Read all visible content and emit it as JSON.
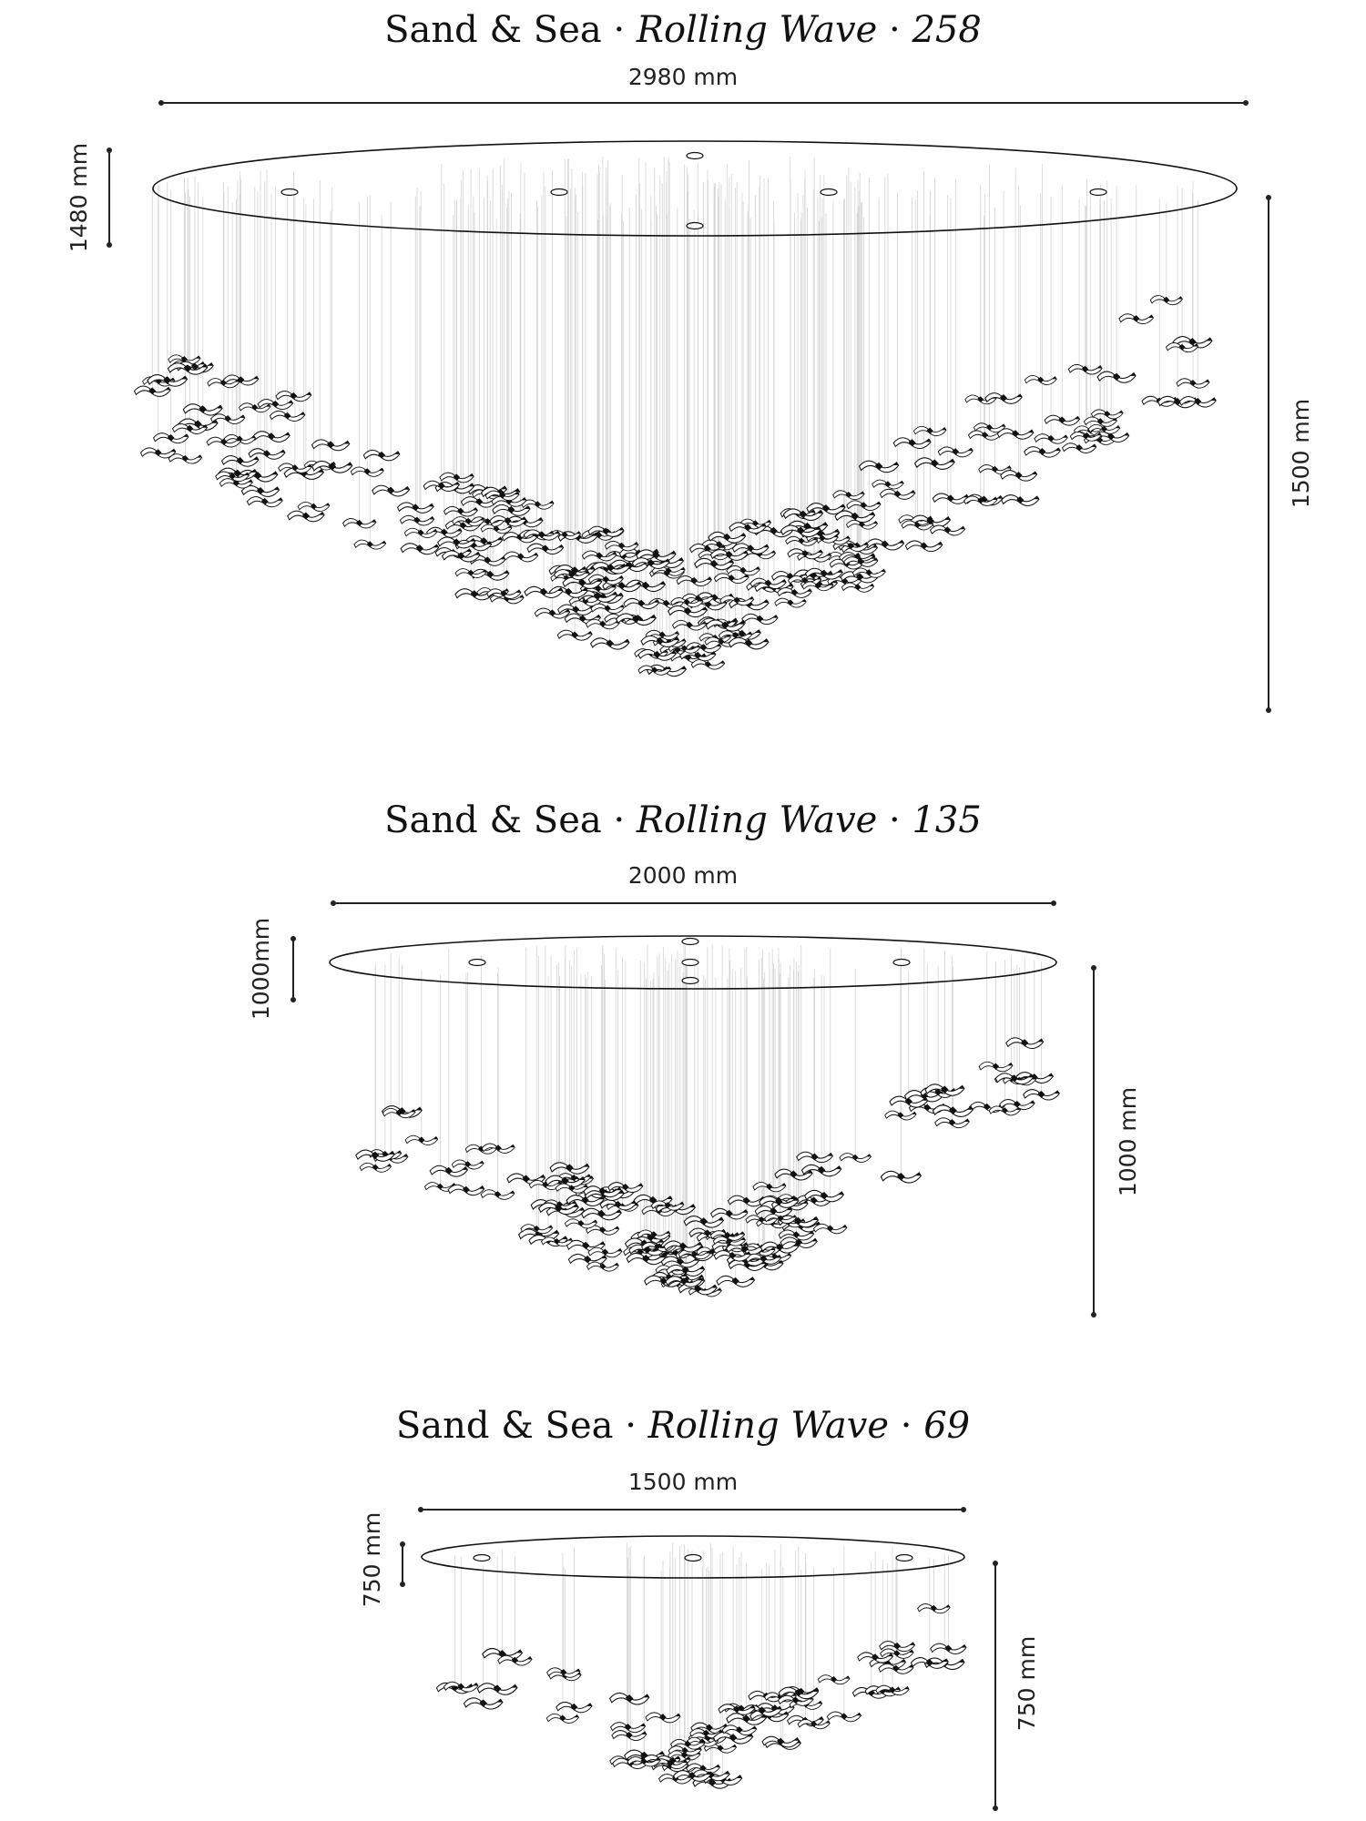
{
  "colors": {
    "ink": "#111111",
    "suspension": "#cfcfcf",
    "wave_fill": "#ffffff"
  },
  "icons": {
    "wave_element": "rolling-wave-ribbon-icon",
    "canopy_hole": "canopy-mount-hole-icon"
  },
  "separator": "·",
  "models": [
    {
      "brand": "Sand & Sea",
      "series": "Rolling Wave",
      "count": "258",
      "width_label": "2980 mm",
      "canopy_height_label": "1480 mm",
      "drop_label": "1500 mm"
    },
    {
      "brand": "Sand & Sea",
      "series": "Rolling Wave",
      "count": "135",
      "width_label": "2000 mm",
      "canopy_height_label": "1000mm",
      "drop_label": "1000 mm"
    },
    {
      "brand": "Sand & Sea",
      "series": "Rolling Wave",
      "count": "69",
      "width_label": "1500 mm",
      "canopy_height_label": "750 mm",
      "drop_label": "750 mm"
    }
  ]
}
